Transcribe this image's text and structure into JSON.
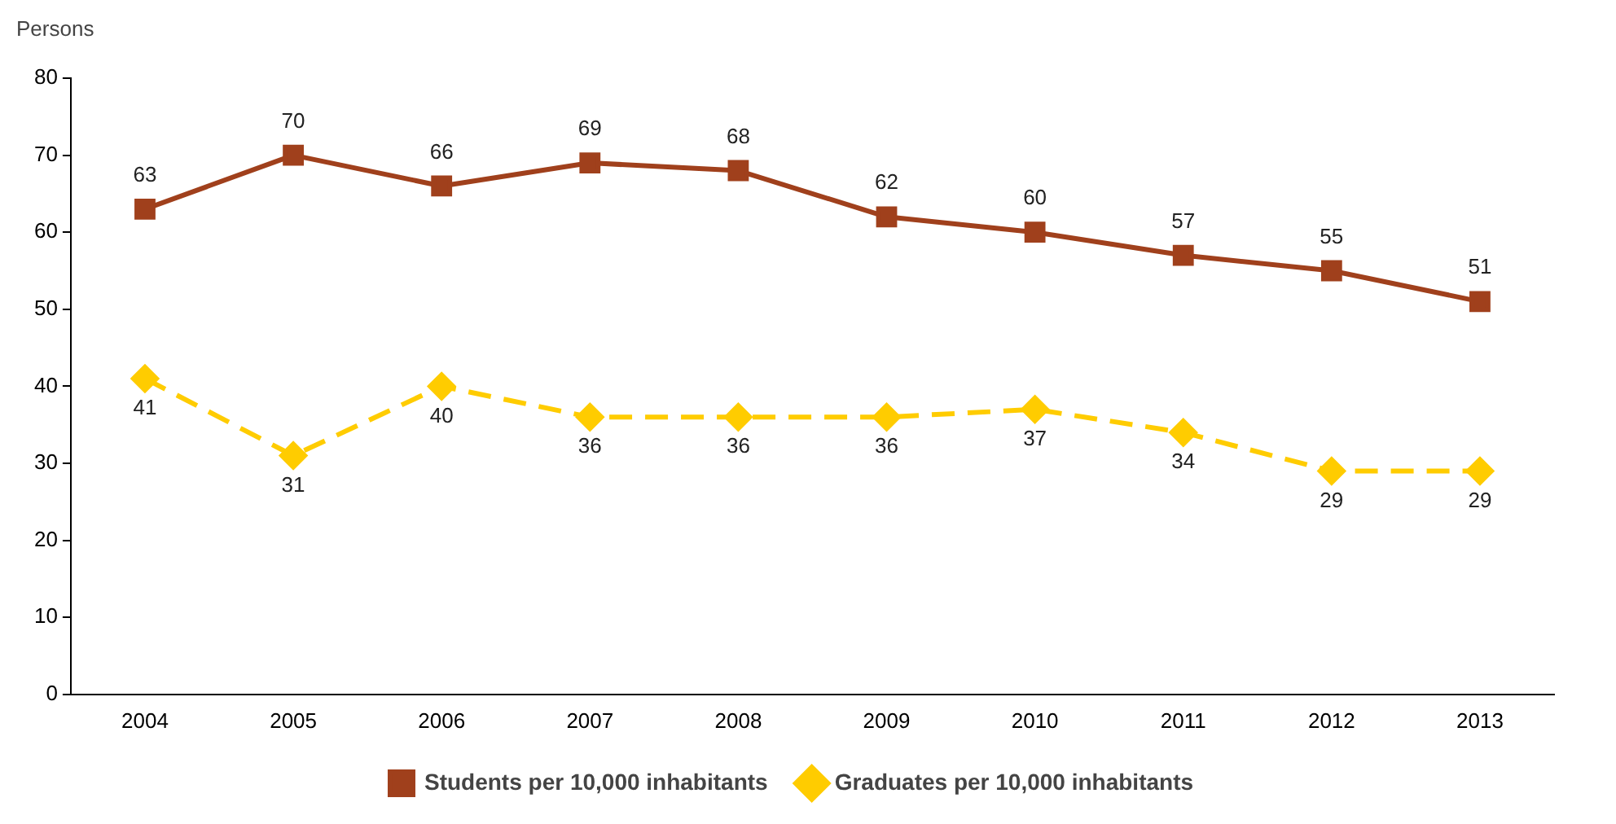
{
  "chart_data": {
    "type": "line",
    "ylabel": "Persons",
    "categories": [
      "2004",
      "2005",
      "2006",
      "2007",
      "2008",
      "2009",
      "2010",
      "2011",
      "2012",
      "2013"
    ],
    "series": [
      {
        "name": "Students per 10,000 inhabitants",
        "color": "#a0401c",
        "marker": "square",
        "line_style": "solid",
        "values": [
          63,
          70,
          66,
          69,
          68,
          62,
          60,
          57,
          55,
          51
        ]
      },
      {
        "name": "Graduates per 10,000 inhabitants",
        "color": "#ffcc00",
        "marker": "diamond",
        "line_style": "dashed",
        "values": [
          41,
          31,
          40,
          36,
          36,
          36,
          37,
          34,
          29,
          29
        ]
      }
    ],
    "ylim": [
      0,
      80
    ],
    "yticks": [
      0,
      10,
      20,
      30,
      40,
      50,
      60,
      70,
      80
    ],
    "grid": false,
    "legend": "bottom",
    "data_labels": true
  }
}
